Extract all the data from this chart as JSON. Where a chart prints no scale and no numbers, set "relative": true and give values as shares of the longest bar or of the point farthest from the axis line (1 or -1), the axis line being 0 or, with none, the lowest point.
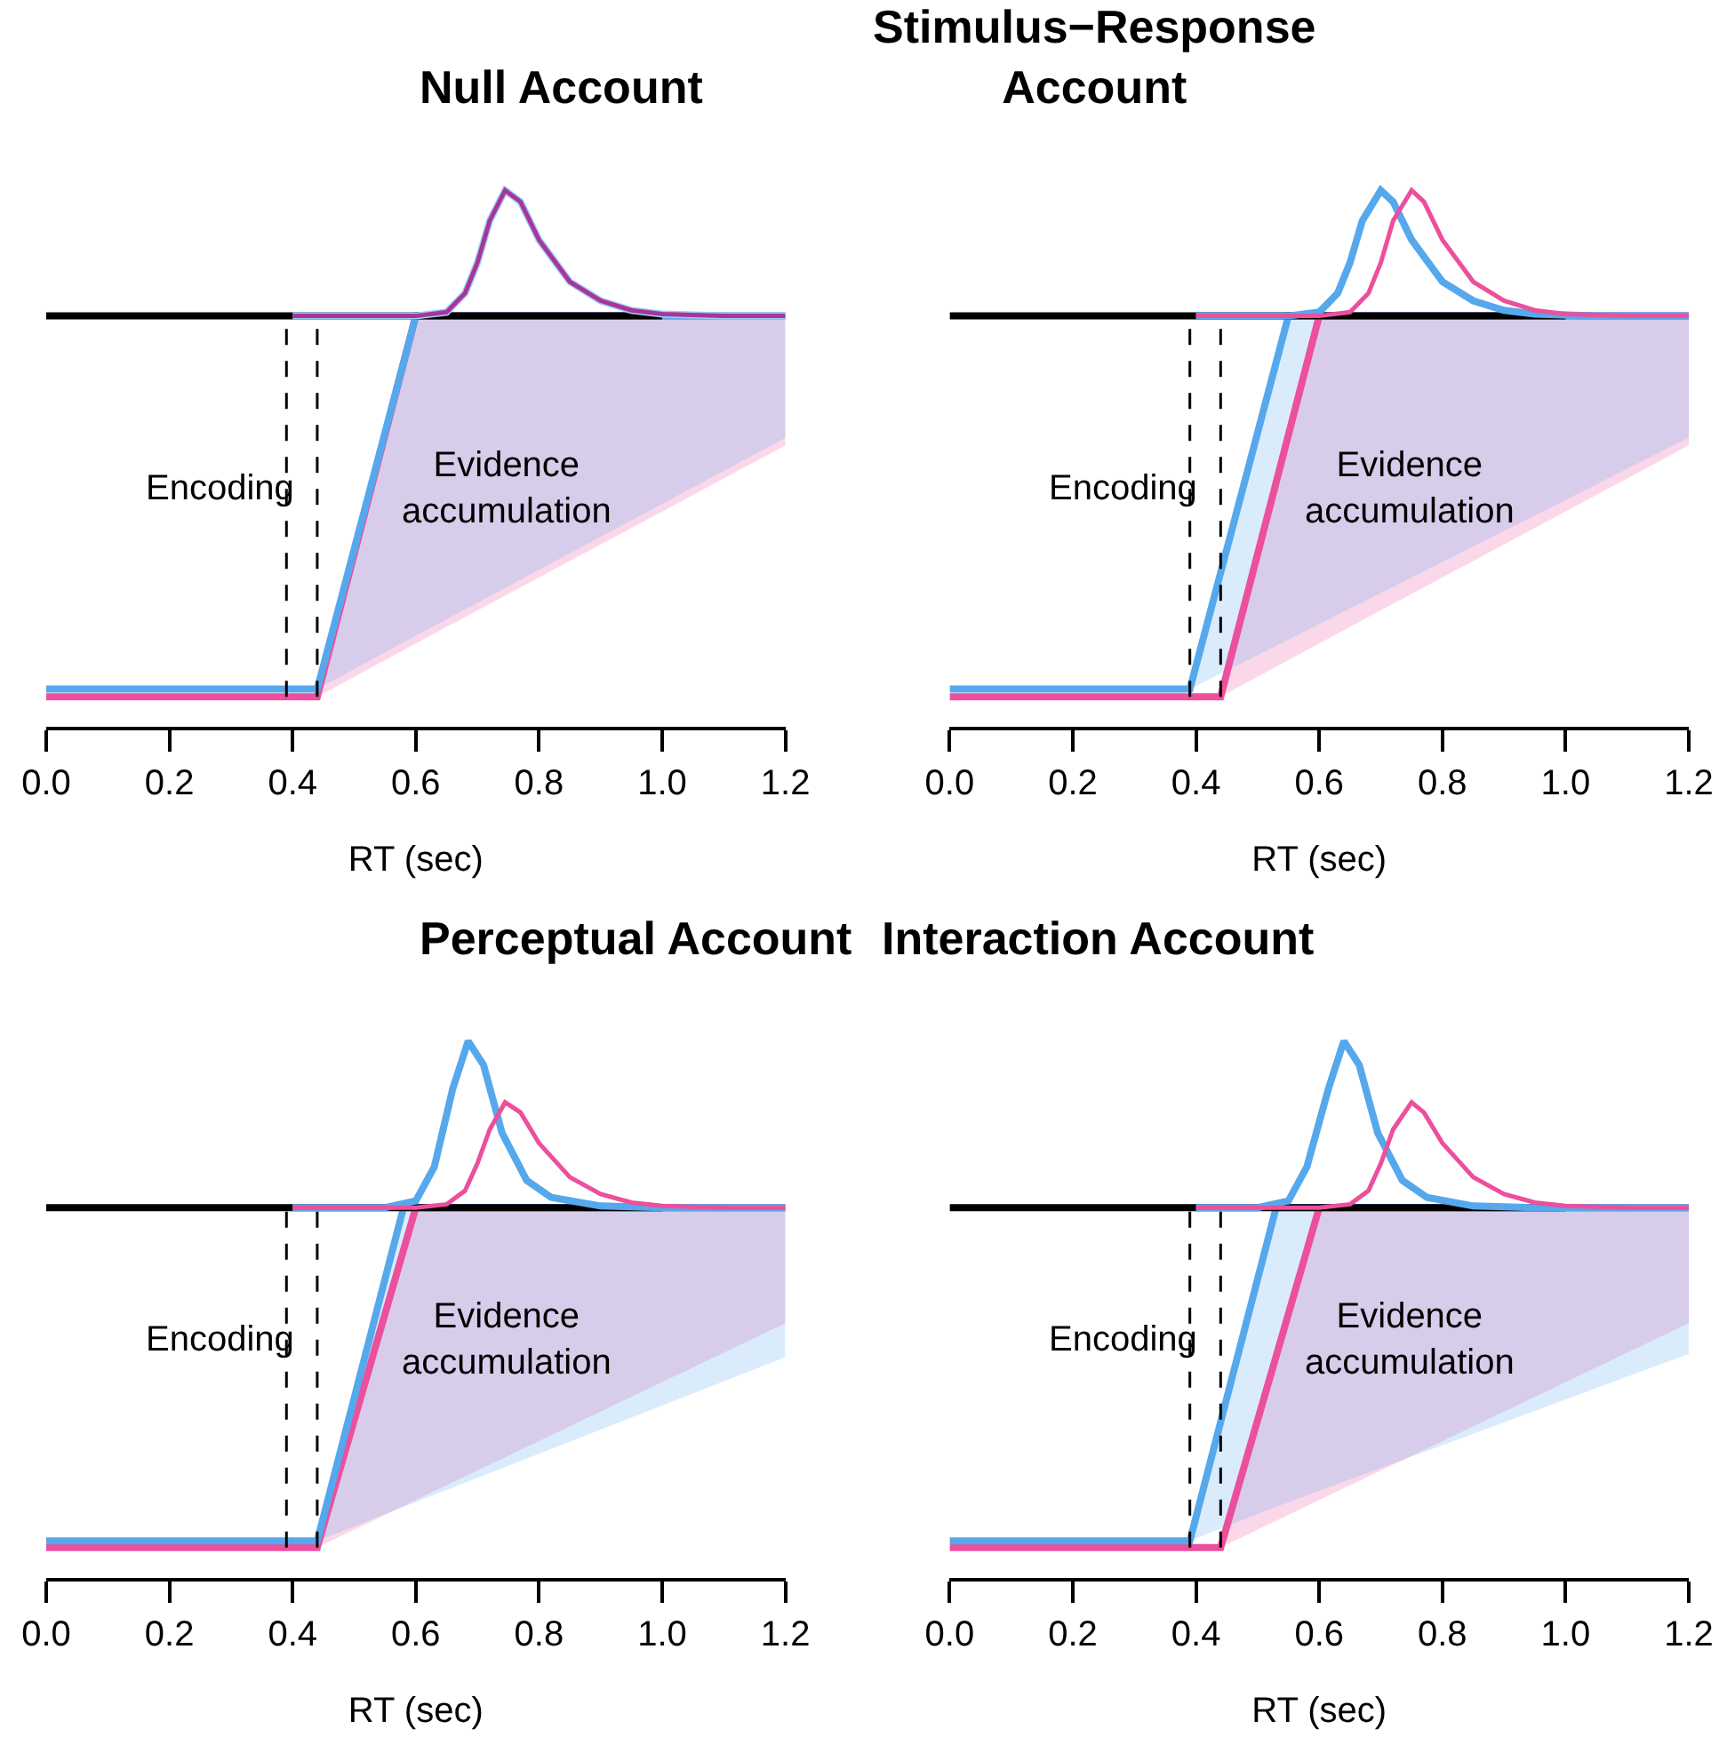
{
  "chart_data": [
    {
      "type": "line",
      "title": "Null Account",
      "xlabel": "RT (sec)",
      "relative": true,
      "tick_labels": "x",
      "line_style": "solid",
      "marker": "none",
      "xlim": [
        0,
        1.2
      ],
      "xticks": [
        {
          "value": 0,
          "label": "0.0"
        },
        {
          "value": 0.2,
          "label": "0.2"
        },
        {
          "value": 0.4,
          "label": "0.4"
        },
        {
          "value": 0.6,
          "label": "0.6"
        },
        {
          "value": 0.8,
          "label": "0.8"
        },
        {
          "value": 1.0,
          "label": "1.0"
        },
        {
          "value": 1.2,
          "label": "1.2"
        }
      ],
      "ref_lines": [
        {
          "axis": "x",
          "value": 0.39,
          "color": "#000000",
          "line_style": "dashed"
        },
        {
          "axis": "x",
          "value": 0.44,
          "color": "#000000",
          "line_style": "dashed"
        }
      ],
      "annotations": [
        "Encoding",
        "Evidence accumulation"
      ],
      "series": [
        {
          "color": "#ec4f9c",
          "x": [
            0,
            0.44,
            0.6,
            1.2
          ],
          "values": [
            -1,
            -1,
            0,
            0
          ],
          "lower": [
            -1,
            -1,
            -0.86,
            -0.34
          ],
          "upper": [
            -1,
            -1,
            0,
            0
          ]
        },
        {
          "color": "#56a8ec",
          "x": [
            0,
            0.44,
            0.6,
            1.2
          ],
          "values": [
            -0.98,
            -0.98,
            0,
            0
          ],
          "lower": [
            -0.98,
            -0.98,
            -0.84,
            -0.32
          ],
          "upper": [
            -0.98,
            -0.98,
            0,
            0
          ]
        },
        {
          "color": "#000000",
          "x": [
            0,
            1.0
          ],
          "values": [
            0,
            0
          ]
        },
        {
          "color": "#9fd0f2",
          "x": [
            0.4,
            0.6,
            0.65,
            0.68,
            0.7,
            0.72,
            0.745,
            0.77,
            0.8,
            0.85,
            0.9,
            0.95,
            1.0,
            1.1,
            1.2
          ],
          "values": [
            0,
            0,
            0.01,
            0.06,
            0.14,
            0.25,
            0.33,
            0.3,
            0.2,
            0.09,
            0.04,
            0.015,
            0.005,
            0,
            0
          ]
        },
        {
          "color": "#a8359c",
          "x": [
            0.4,
            0.6,
            0.65,
            0.68,
            0.7,
            0.72,
            0.745,
            0.77,
            0.8,
            0.85,
            0.9,
            0.95,
            1.0,
            1.1,
            1.2
          ],
          "values": [
            0,
            0,
            0.01,
            0.06,
            0.14,
            0.25,
            0.33,
            0.3,
            0.2,
            0.09,
            0.04,
            0.015,
            0.005,
            0,
            0
          ]
        }
      ]
    },
    {
      "type": "line",
      "title": "Stimulus−Response Account",
      "xlabel": "RT (sec)",
      "relative": true,
      "tick_labels": "x",
      "line_style": "solid",
      "marker": "none",
      "xlim": [
        0,
        1.2
      ],
      "xticks": [
        {
          "value": 0,
          "label": "0.0"
        },
        {
          "value": 0.2,
          "label": "0.2"
        },
        {
          "value": 0.4,
          "label": "0.4"
        },
        {
          "value": 0.6,
          "label": "0.6"
        },
        {
          "value": 0.8,
          "label": "0.8"
        },
        {
          "value": 1.0,
          "label": "1.0"
        },
        {
          "value": 1.2,
          "label": "1.2"
        }
      ],
      "ref_lines": [
        {
          "axis": "x",
          "value": 0.39,
          "color": "#000000",
          "line_style": "dashed"
        },
        {
          "axis": "x",
          "value": 0.44,
          "color": "#000000",
          "line_style": "dashed"
        }
      ],
      "annotations": [
        "Encoding",
        "Evidence accumulation"
      ],
      "series": [
        {
          "color": "#ec4f9c",
          "x": [
            0,
            0.44,
            0.6,
            1.2
          ],
          "values": [
            -1,
            -1,
            0,
            0
          ],
          "lower": [
            -1,
            -1,
            -0.86,
            -0.34
          ],
          "upper": [
            -1,
            -1,
            0,
            0
          ]
        },
        {
          "color": "#56a8ec",
          "x": [
            0,
            0.39,
            0.55,
            1.2
          ],
          "values": [
            -0.98,
            -0.98,
            0,
            0
          ],
          "lower": [
            -0.98,
            -0.98,
            -0.85,
            -0.32
          ],
          "upper": [
            -0.98,
            -0.98,
            0,
            0
          ]
        },
        {
          "color": "#000000",
          "x": [
            0,
            1.0
          ],
          "values": [
            0,
            0
          ]
        },
        {
          "color": "#56a8ec",
          "x": [
            0.4,
            0.55,
            0.6,
            0.63,
            0.65,
            0.67,
            0.7,
            0.72,
            0.75,
            0.8,
            0.85,
            0.9,
            0.95,
            1.05,
            1.2
          ],
          "values": [
            0,
            0,
            0.01,
            0.06,
            0.14,
            0.25,
            0.33,
            0.3,
            0.2,
            0.09,
            0.04,
            0.015,
            0.005,
            0,
            0
          ]
        },
        {
          "color": "#ec4f9c",
          "x": [
            0.4,
            0.6,
            0.65,
            0.68,
            0.7,
            0.72,
            0.75,
            0.77,
            0.8,
            0.85,
            0.9,
            0.95,
            1.0,
            1.1,
            1.2
          ],
          "values": [
            0,
            0,
            0.01,
            0.06,
            0.14,
            0.25,
            0.33,
            0.3,
            0.2,
            0.09,
            0.04,
            0.015,
            0.005,
            0,
            0
          ]
        }
      ]
    },
    {
      "type": "line",
      "title": "Perceptual Account",
      "xlabel": "RT (sec)",
      "relative": true,
      "tick_labels": "x",
      "line_style": "solid",
      "marker": "none",
      "xlim": [
        0,
        1.2
      ],
      "xticks": [
        {
          "value": 0,
          "label": "0.0"
        },
        {
          "value": 0.2,
          "label": "0.2"
        },
        {
          "value": 0.4,
          "label": "0.4"
        },
        {
          "value": 0.6,
          "label": "0.6"
        },
        {
          "value": 0.8,
          "label": "0.8"
        },
        {
          "value": 1.0,
          "label": "1.0"
        },
        {
          "value": 1.2,
          "label": "1.2"
        }
      ],
      "ref_lines": [
        {
          "axis": "x",
          "value": 0.39,
          "color": "#000000",
          "line_style": "dashed"
        },
        {
          "axis": "x",
          "value": 0.44,
          "color": "#000000",
          "line_style": "dashed"
        }
      ],
      "annotations": [
        "Encoding",
        "Evidence accumulation"
      ],
      "series": [
        {
          "color": "#ec4f9c",
          "x": [
            0,
            0.44,
            0.6,
            1.2
          ],
          "values": [
            -1,
            -1,
            0,
            0
          ],
          "lower": [
            -1,
            -1,
            -0.86,
            -0.34
          ],
          "upper": [
            -1,
            -1,
            0,
            0
          ]
        },
        {
          "color": "#56a8ec",
          "x": [
            0,
            0.44,
            0.58,
            1.2
          ],
          "values": [
            -0.98,
            -0.98,
            0,
            0
          ],
          "lower": [
            -0.98,
            -0.98,
            -0.88,
            -0.44
          ],
          "upper": [
            -0.98,
            -0.98,
            0,
            0
          ]
        },
        {
          "color": "#000000",
          "x": [
            0,
            1.0
          ],
          "values": [
            0,
            0
          ]
        },
        {
          "color": "#56a8ec",
          "x": [
            0.4,
            0.55,
            0.6,
            0.63,
            0.66,
            0.685,
            0.71,
            0.74,
            0.78,
            0.82,
            0.9,
            1.0,
            1.2
          ],
          "values": [
            0,
            0,
            0.02,
            0.12,
            0.35,
            0.49,
            0.42,
            0.22,
            0.08,
            0.03,
            0.005,
            0,
            0
          ]
        },
        {
          "color": "#ec4f9c",
          "x": [
            0.4,
            0.6,
            0.65,
            0.68,
            0.7,
            0.72,
            0.745,
            0.77,
            0.8,
            0.85,
            0.9,
            0.95,
            1.0,
            1.1,
            1.2
          ],
          "values": [
            0,
            0,
            0.01,
            0.05,
            0.13,
            0.23,
            0.31,
            0.28,
            0.19,
            0.09,
            0.04,
            0.015,
            0.005,
            0,
            0
          ]
        }
      ]
    },
    {
      "type": "line",
      "title": "Interaction Account",
      "xlabel": "RT (sec)",
      "relative": true,
      "tick_labels": "x",
      "line_style": "solid",
      "marker": "none",
      "xlim": [
        0,
        1.2
      ],
      "xticks": [
        {
          "value": 0,
          "label": "0.0"
        },
        {
          "value": 0.2,
          "label": "0.2"
        },
        {
          "value": 0.4,
          "label": "0.4"
        },
        {
          "value": 0.6,
          "label": "0.6"
        },
        {
          "value": 0.8,
          "label": "0.8"
        },
        {
          "value": 1.0,
          "label": "1.0"
        },
        {
          "value": 1.2,
          "label": "1.2"
        }
      ],
      "ref_lines": [
        {
          "axis": "x",
          "value": 0.39,
          "color": "#000000",
          "line_style": "dashed"
        },
        {
          "axis": "x",
          "value": 0.44,
          "color": "#000000",
          "line_style": "dashed"
        }
      ],
      "annotations": [
        "Encoding",
        "Evidence accumulation"
      ],
      "series": [
        {
          "color": "#ec4f9c",
          "x": [
            0,
            0.44,
            0.6,
            1.2
          ],
          "values": [
            -1,
            -1,
            0,
            0
          ],
          "lower": [
            -1,
            -1,
            -0.86,
            -0.34
          ],
          "upper": [
            -1,
            -1,
            0,
            0
          ]
        },
        {
          "color": "#56a8ec",
          "x": [
            0,
            0.39,
            0.53,
            1.2
          ],
          "values": [
            -0.98,
            -0.98,
            0,
            0
          ],
          "lower": [
            -0.98,
            -0.98,
            -0.88,
            -0.43
          ],
          "upper": [
            -0.98,
            -0.98,
            0,
            0
          ]
        },
        {
          "color": "#000000",
          "x": [
            0,
            1.0
          ],
          "values": [
            0,
            0
          ]
        },
        {
          "color": "#56a8ec",
          "x": [
            0.4,
            0.5,
            0.55,
            0.58,
            0.615,
            0.64,
            0.665,
            0.695,
            0.735,
            0.775,
            0.85,
            0.95,
            1.2
          ],
          "values": [
            0,
            0,
            0.02,
            0.12,
            0.35,
            0.49,
            0.42,
            0.22,
            0.08,
            0.03,
            0.005,
            0,
            0
          ]
        },
        {
          "color": "#ec4f9c",
          "x": [
            0.4,
            0.6,
            0.65,
            0.68,
            0.7,
            0.72,
            0.75,
            0.77,
            0.8,
            0.85,
            0.9,
            0.95,
            1.0,
            1.1,
            1.2
          ],
          "values": [
            0,
            0,
            0.01,
            0.05,
            0.13,
            0.23,
            0.31,
            0.28,
            0.19,
            0.09,
            0.04,
            0.015,
            0.005,
            0,
            0
          ]
        }
      ]
    }
  ]
}
